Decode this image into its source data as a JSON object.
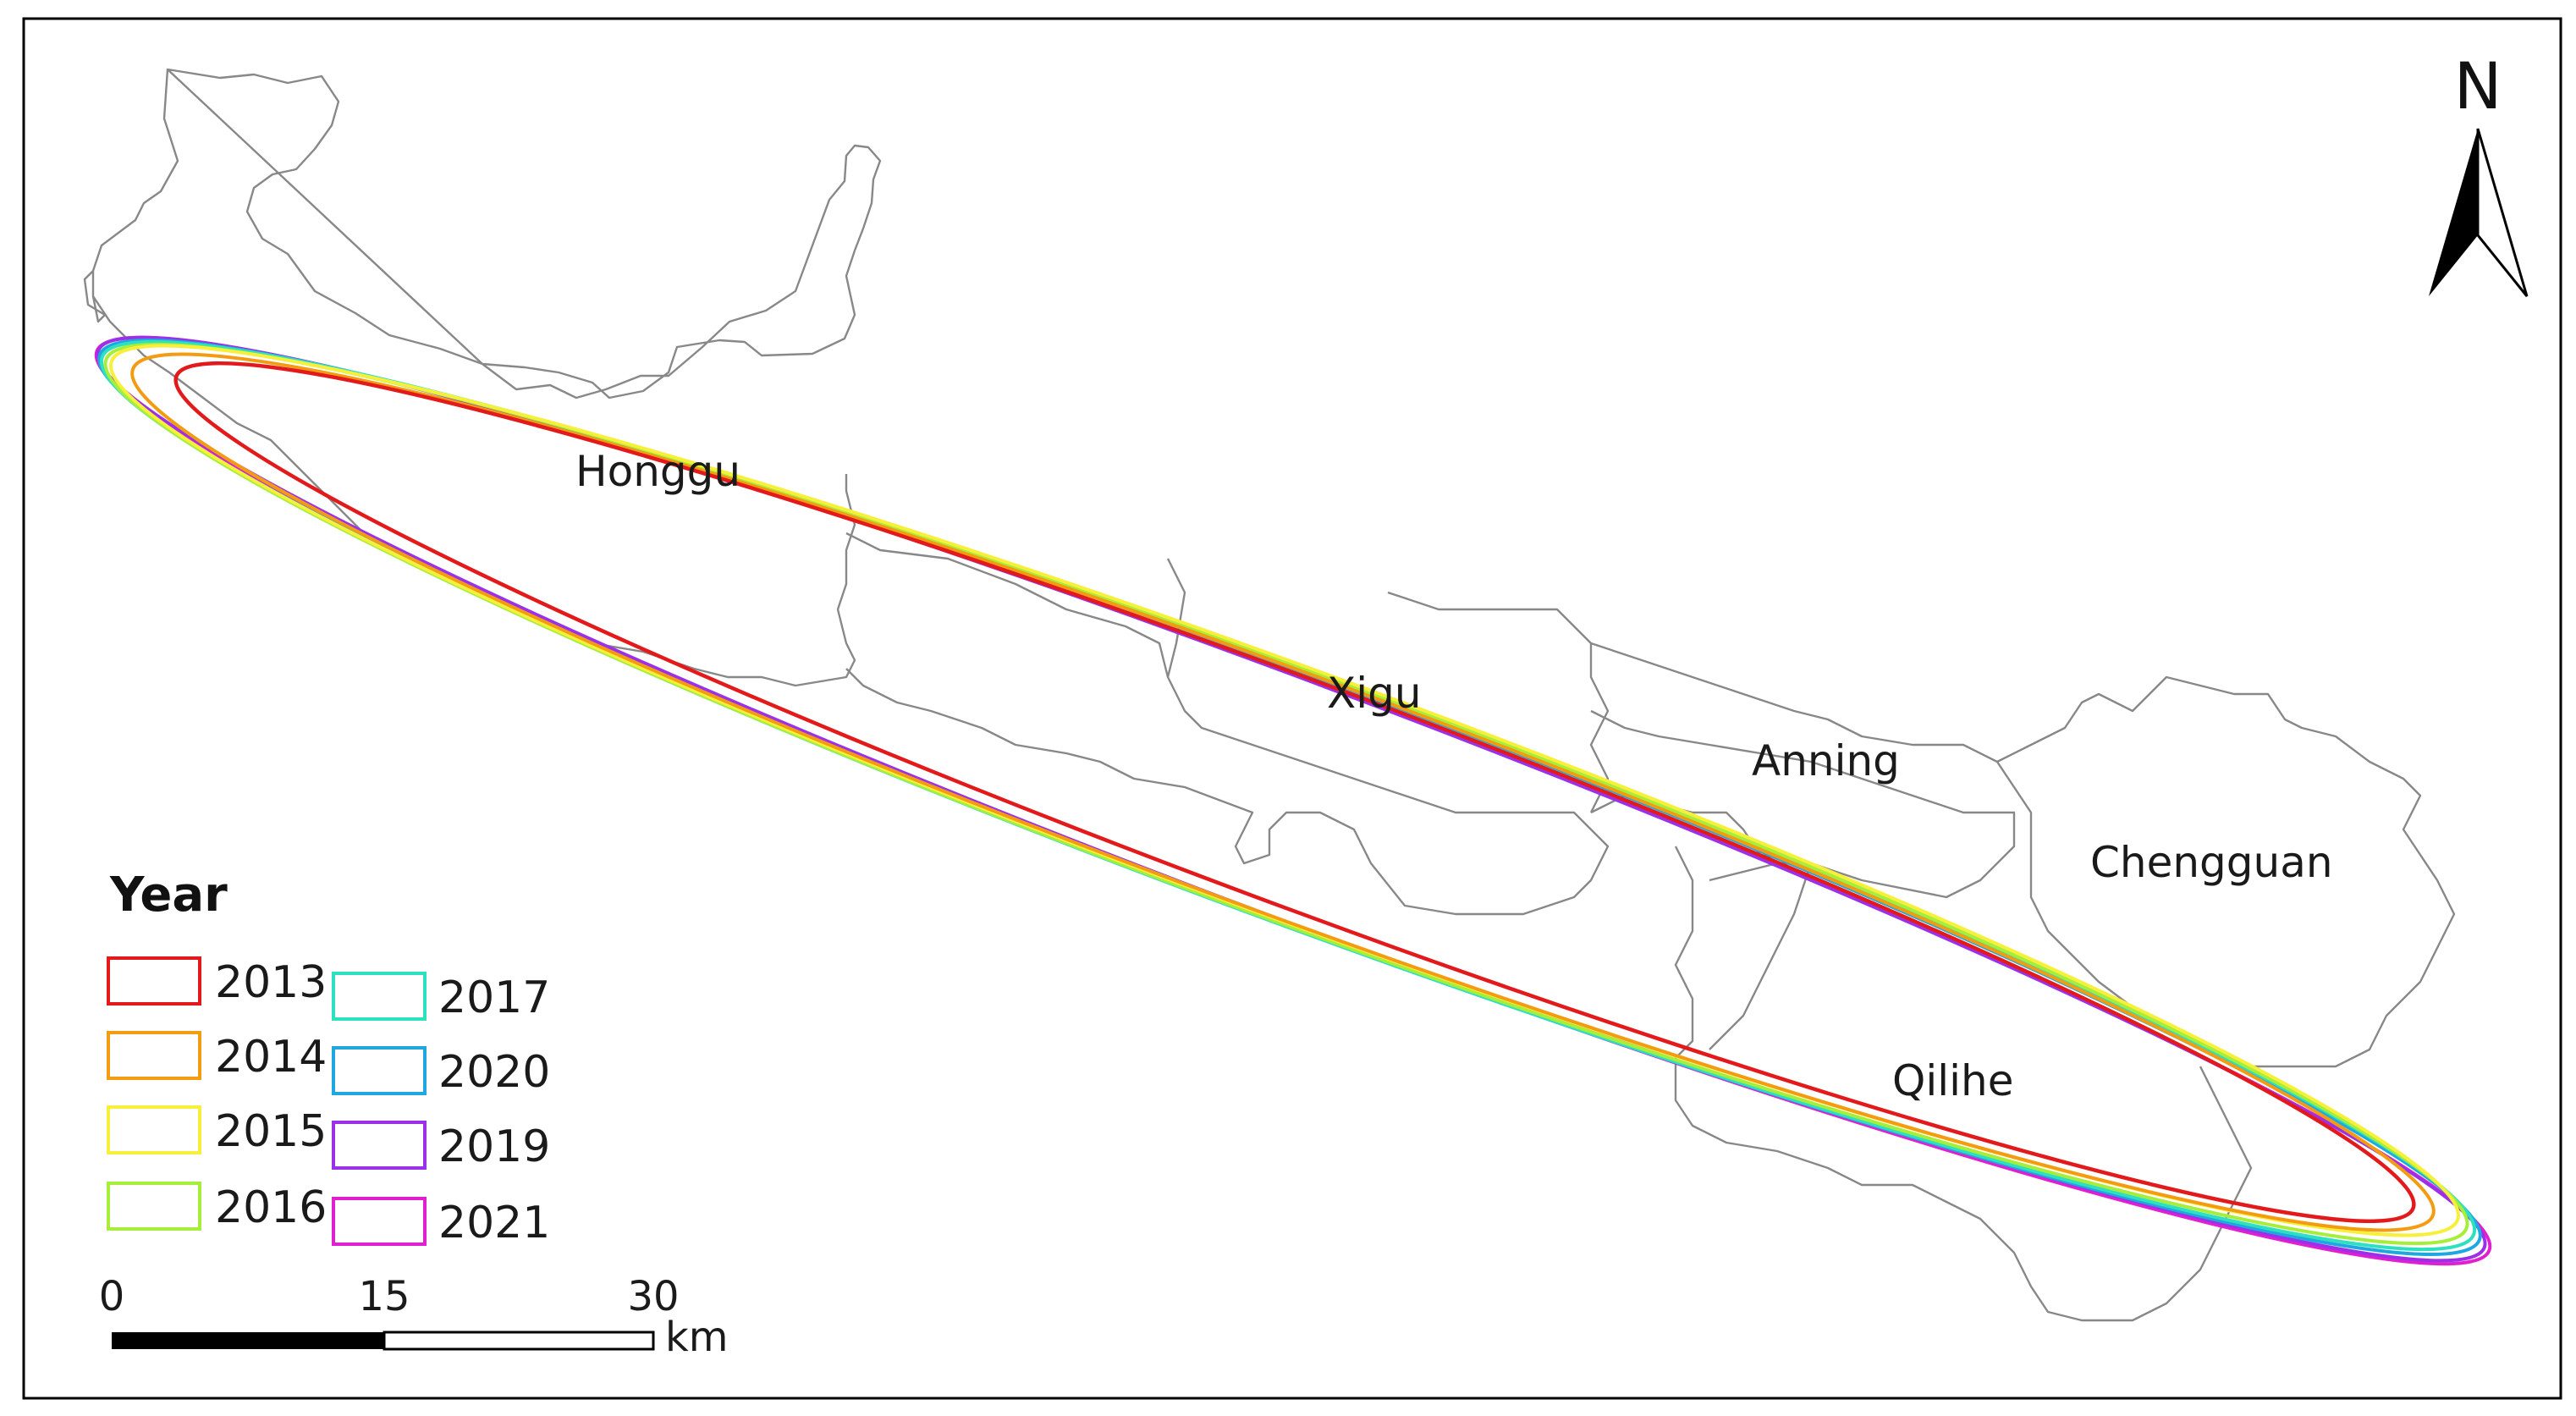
{
  "districts": {
    "honggu": "Honggu",
    "xigu": "Xigu",
    "anning": "Anning",
    "chengguan": "Chengguan",
    "qilihe": "Qilihe"
  },
  "north_arrow": {
    "label": "N"
  },
  "legend": {
    "title": "Year",
    "items": [
      {
        "label": "2013",
        "color": "#e31a1c"
      },
      {
        "label": "2014",
        "color": "#f39c12"
      },
      {
        "label": "2015",
        "color": "#f7f03a"
      },
      {
        "label": "2016",
        "color": "#a6ee3a"
      },
      {
        "label": "2017",
        "color": "#2de0c0"
      },
      {
        "label": "2020",
        "color": "#1fa8e0"
      },
      {
        "label": "2019",
        "color": "#9b30e8"
      },
      {
        "label": "2021",
        "color": "#e020d0"
      }
    ]
  },
  "scale_bar": {
    "ticks": [
      "0",
      "15",
      "30"
    ],
    "unit": "km"
  }
}
